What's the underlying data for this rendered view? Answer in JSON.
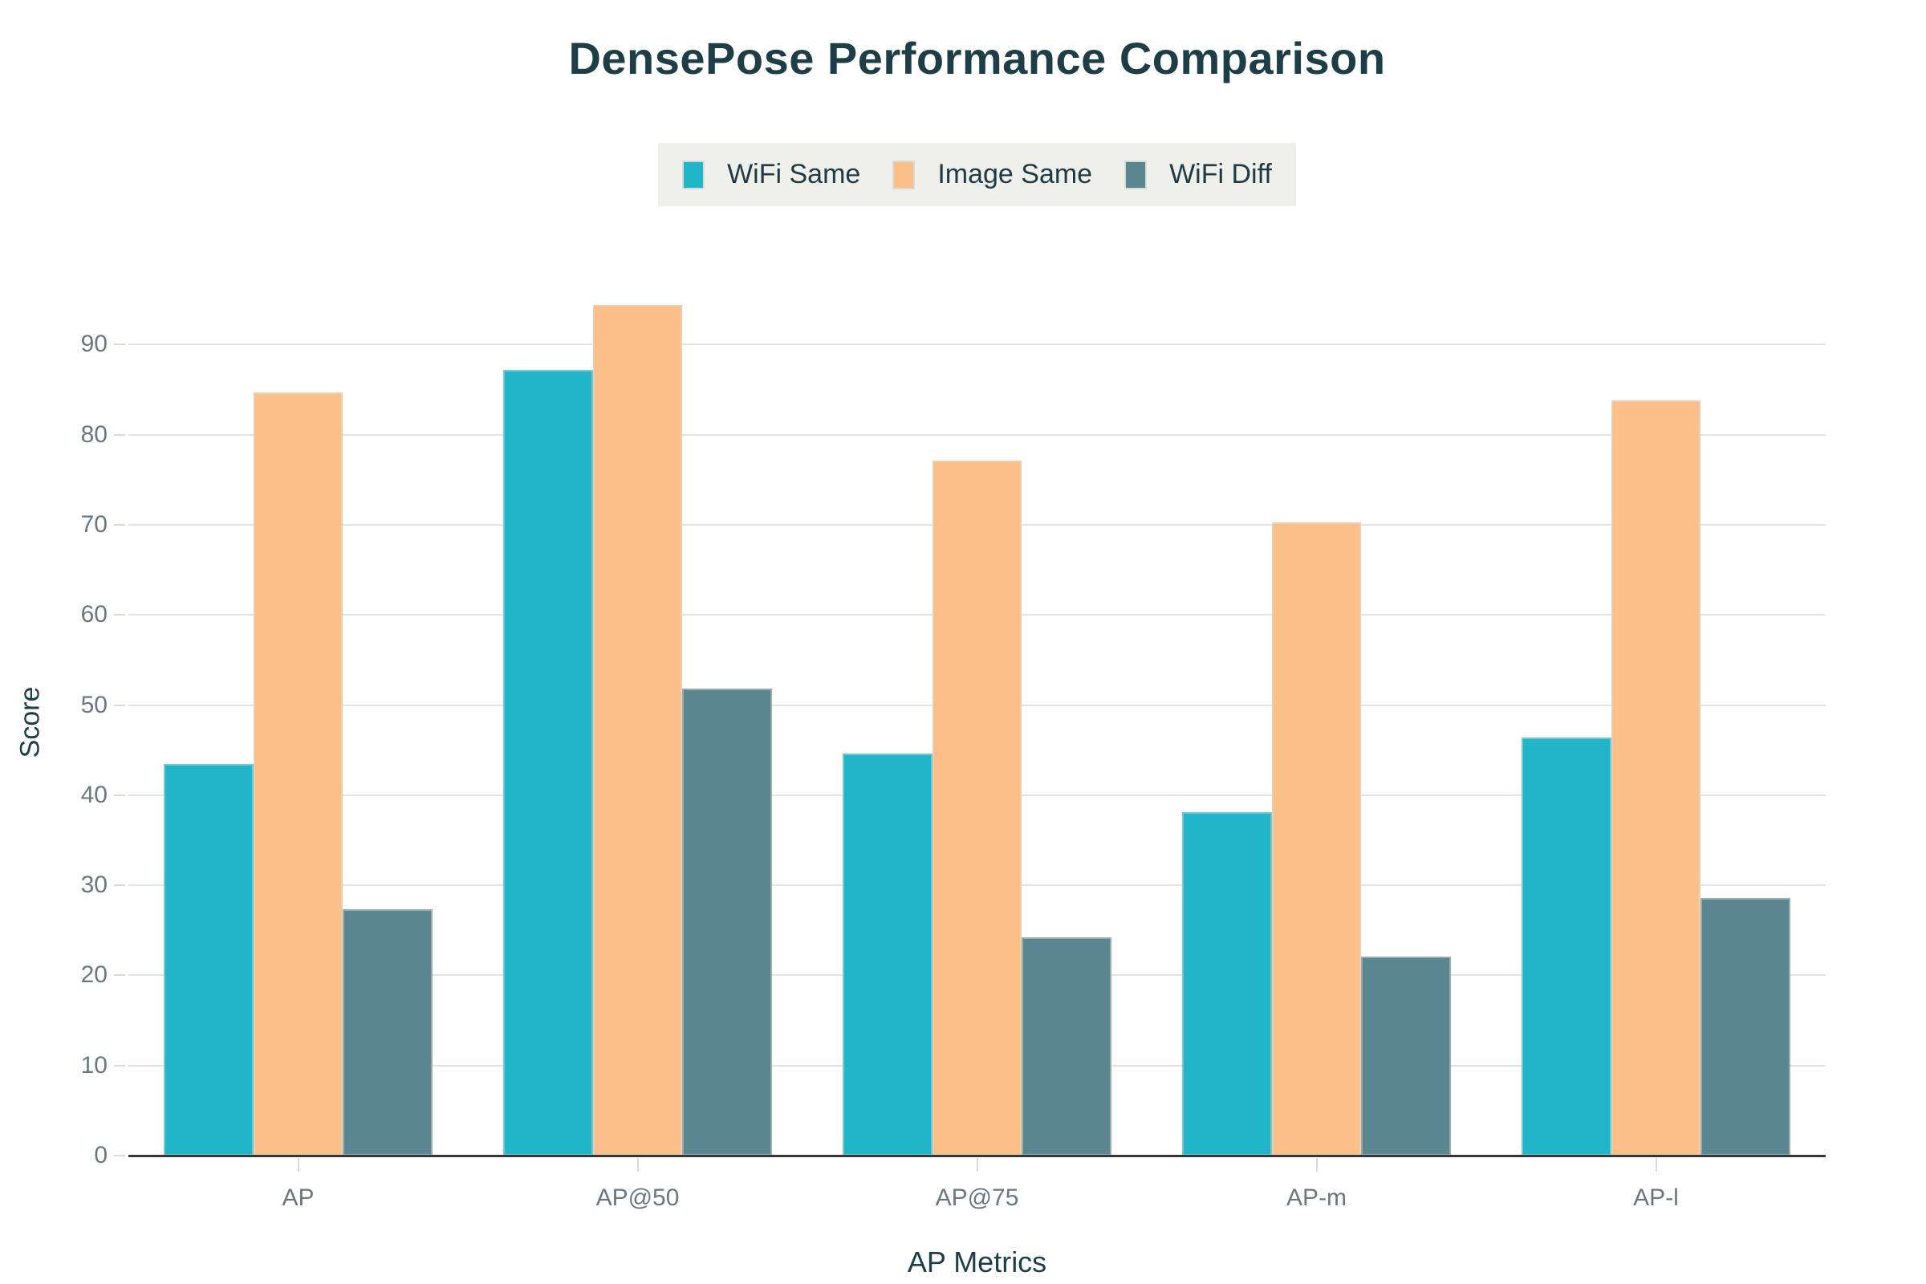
{
  "title": "DensePose Performance Comparison",
  "chart_data": {
    "type": "bar",
    "title": "DensePose Performance Comparison",
    "xlabel": "AP Metrics",
    "ylabel": "Score",
    "categories": [
      "AP",
      "AP@50",
      "AP@75",
      "AP-m",
      "AP-l"
    ],
    "series": [
      {
        "name": "WiFi Same",
        "color": "#21b5c9",
        "values": [
          43.5,
          87.2,
          44.6,
          38.1,
          46.4
        ]
      },
      {
        "name": "Image Same",
        "color": "#fcbf87",
        "values": [
          84.7,
          94.4,
          77.1,
          70.3,
          83.8
        ]
      },
      {
        "name": "WiFi Diff",
        "color": "#5b858f",
        "values": [
          27.3,
          51.8,
          24.2,
          22.1,
          28.6
        ]
      }
    ],
    "ylim": [
      0,
      96
    ],
    "yticks": [
      0,
      10,
      20,
      30,
      40,
      50,
      60,
      70,
      80,
      90
    ],
    "grid": true,
    "legend_position": "top-center"
  },
  "colors": {
    "background": "#ffffff",
    "title_text": "#1d3e46",
    "axis_title_text": "#1d3e46",
    "tick_text": "#6b7780",
    "legend_background": "#eef0e9",
    "legend_text": "#1f3a47",
    "gridline": "#e1e3e4",
    "axis_line": "#31373a"
  }
}
